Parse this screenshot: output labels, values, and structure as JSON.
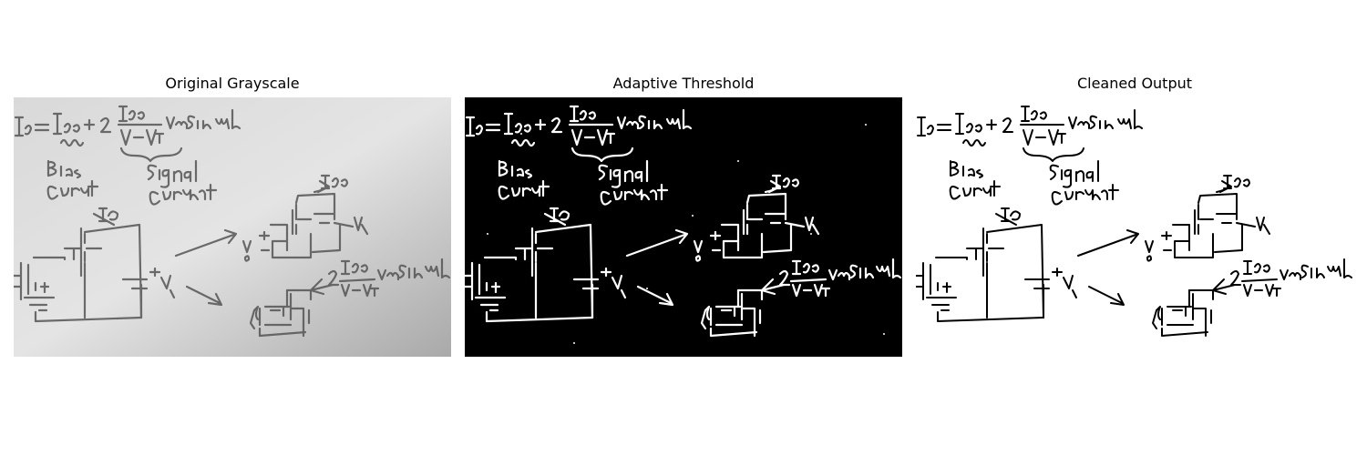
{
  "panels": [
    {
      "title": "Original Grayscale",
      "style": "grayscale-photo",
      "background": "#cfcfcf",
      "ink": "#5a5a5a"
    },
    {
      "title": "Adaptive Threshold",
      "style": "binary-inverted",
      "background": "#000000",
      "ink": "#ffffff"
    },
    {
      "title": "Cleaned Output",
      "style": "cleaned",
      "background": "#ffffff",
      "ink": "#000000"
    }
  ]
}
